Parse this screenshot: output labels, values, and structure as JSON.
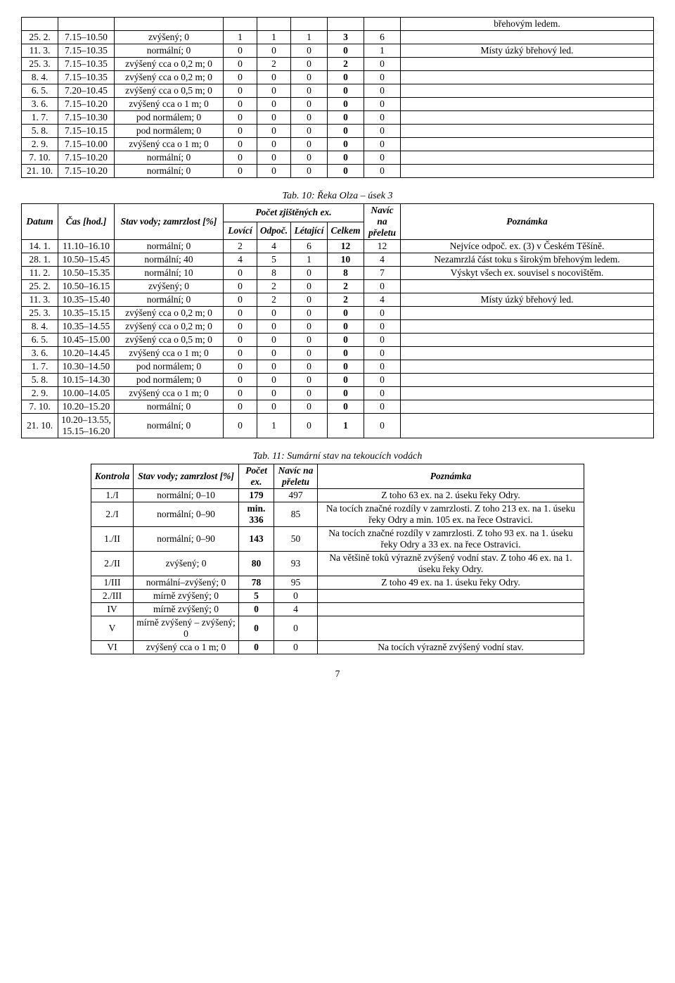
{
  "table1": {
    "rows": [
      {
        "d": "",
        "t": "",
        "s": "",
        "v": [
          "",
          "",
          "",
          "",
          ""
        ],
        "n": "břehovým ledem."
      },
      {
        "d": "25. 2.",
        "t": "7.15–10.50",
        "s": "zvýšený; 0",
        "v": [
          "1",
          "1",
          "1",
          "3",
          "6"
        ],
        "n": "",
        "bold4": true
      },
      {
        "d": "11. 3.",
        "t": "7.15–10.35",
        "s": "normální; 0",
        "v": [
          "0",
          "0",
          "0",
          "0",
          "1"
        ],
        "n": "Místy úzký břehový led.",
        "bold4": true
      },
      {
        "d": "25. 3.",
        "t": "7.15–10.35",
        "s": "zvýšený cca o 0,2 m; 0",
        "v": [
          "0",
          "2",
          "0",
          "2",
          "0"
        ],
        "n": "",
        "bold4": true
      },
      {
        "d": "8. 4.",
        "t": "7.15–10.35",
        "s": "zvýšený cca o 0,2 m; 0",
        "v": [
          "0",
          "0",
          "0",
          "0",
          "0"
        ],
        "n": "",
        "bold4": true
      },
      {
        "d": "6. 5.",
        "t": "7.20–10.45",
        "s": "zvýšený cca o 0,5 m; 0",
        "v": [
          "0",
          "0",
          "0",
          "0",
          "0"
        ],
        "n": "",
        "bold4": true
      },
      {
        "d": "3. 6.",
        "t": "7.15–10.20",
        "s": "zvýšený cca o 1 m; 0",
        "v": [
          "0",
          "0",
          "0",
          "0",
          "0"
        ],
        "n": "",
        "bold4": true
      },
      {
        "d": "1. 7.",
        "t": "7.15–10.30",
        "s": "pod normálem; 0",
        "v": [
          "0",
          "0",
          "0",
          "0",
          "0"
        ],
        "n": "",
        "bold4": true
      },
      {
        "d": "5. 8.",
        "t": "7.15–10.15",
        "s": "pod normálem; 0",
        "v": [
          "0",
          "0",
          "0",
          "0",
          "0"
        ],
        "n": "",
        "bold4": true
      },
      {
        "d": "2. 9.",
        "t": "7.15–10.00",
        "s": "zvýšený cca o 1 m; 0",
        "v": [
          "0",
          "0",
          "0",
          "0",
          "0"
        ],
        "n": "",
        "bold4": true
      },
      {
        "d": "7. 10.",
        "t": "7.15–10.20",
        "s": "normální; 0",
        "v": [
          "0",
          "0",
          "0",
          "0",
          "0"
        ],
        "n": "",
        "bold4": true
      },
      {
        "d": "21. 10.",
        "t": "7.15–10.20",
        "s": "normální; 0",
        "v": [
          "0",
          "0",
          "0",
          "0",
          "0"
        ],
        "n": "",
        "bold4": true
      }
    ]
  },
  "caption2": "Tab. 10: Řeka Olza – úsek 3",
  "table2": {
    "head": {
      "datum": "Datum",
      "cas": "Čas [hod.]",
      "stav": "Stav vody; zamrzlost [%]",
      "pocet": "Počet zjištěných ex.",
      "navic": "Navíc na přeletu",
      "pozn": "Poznámka",
      "lov": "Lovící",
      "odp": "Odpoč.",
      "let": "Létající",
      "cel": "Celkem"
    },
    "rows": [
      {
        "d": "14. 1.",
        "t": "11.10–16.10",
        "s": "normální; 0",
        "v": [
          "2",
          "4",
          "6",
          "12",
          "12"
        ],
        "n": "Nejvíce odpoč. ex. (3) v Českém Těšíně."
      },
      {
        "d": "28. 1.",
        "t": "10.50–15.45",
        "s": "normální; 40",
        "v": [
          "4",
          "5",
          "1",
          "10",
          "4"
        ],
        "n": "Nezamrzlá část toku s širokým břehovým ledem."
      },
      {
        "d": "11. 2.",
        "t": "10.50–15.35",
        "s": "normální; 10",
        "v": [
          "0",
          "8",
          "0",
          "8",
          "7"
        ],
        "n": "Výskyt všech ex. souvisel s nocovištěm."
      },
      {
        "d": "25. 2.",
        "t": "10.50–16.15",
        "s": "zvýšený; 0",
        "v": [
          "0",
          "2",
          "0",
          "2",
          "0"
        ],
        "n": ""
      },
      {
        "d": "11. 3.",
        "t": "10.35–15.40",
        "s": "normální; 0",
        "v": [
          "0",
          "2",
          "0",
          "2",
          "4"
        ],
        "n": "Místy úzký břehový led."
      },
      {
        "d": "25. 3.",
        "t": "10.35–15.15",
        "s": "zvýšený cca o 0,2 m; 0",
        "v": [
          "0",
          "0",
          "0",
          "0",
          "0"
        ],
        "n": ""
      },
      {
        "d": "8. 4.",
        "t": "10.35–14.55",
        "s": "zvýšený cca o 0,2 m; 0",
        "v": [
          "0",
          "0",
          "0",
          "0",
          "0"
        ],
        "n": ""
      },
      {
        "d": "6. 5.",
        "t": "10.45–15.00",
        "s": "zvýšený cca o 0,5 m; 0",
        "v": [
          "0",
          "0",
          "0",
          "0",
          "0"
        ],
        "n": ""
      },
      {
        "d": "3. 6.",
        "t": "10.20–14.45",
        "s": "zvýšený cca o 1 m; 0",
        "v": [
          "0",
          "0",
          "0",
          "0",
          "0"
        ],
        "n": ""
      },
      {
        "d": "1. 7.",
        "t": "10.30–14.50",
        "s": "pod normálem; 0",
        "v": [
          "0",
          "0",
          "0",
          "0",
          "0"
        ],
        "n": ""
      },
      {
        "d": "5. 8.",
        "t": "10.15–14.30",
        "s": "pod normálem; 0",
        "v": [
          "0",
          "0",
          "0",
          "0",
          "0"
        ],
        "n": ""
      },
      {
        "d": "2. 9.",
        "t": "10.00–14.05",
        "s": "zvýšený cca o 1 m; 0",
        "v": [
          "0",
          "0",
          "0",
          "0",
          "0"
        ],
        "n": ""
      },
      {
        "d": "7. 10.",
        "t": "10.20–15.20",
        "s": "normální; 0",
        "v": [
          "0",
          "0",
          "0",
          "0",
          "0"
        ],
        "n": ""
      },
      {
        "d": "21. 10.",
        "t": "10.20–13.55, 15.15–16.20",
        "s": "normální; 0",
        "v": [
          "0",
          "1",
          "0",
          "1",
          "0"
        ],
        "n": ""
      }
    ]
  },
  "caption3": "Tab. 11: Sumární stav na tekoucích vodách",
  "table3": {
    "head": {
      "k": "Kontrola",
      "s": "Stav vody; zamrzlost [%]",
      "p": "Počet ex.",
      "n": "Navíc na přeletu",
      "z": "Poznámka"
    },
    "rows": [
      {
        "k": "1./I",
        "s": "normální; 0–10",
        "p": "179",
        "n": "497",
        "z": "Z toho 63 ex. na 2. úseku řeky Odry.",
        "pb": true
      },
      {
        "k": "2./I",
        "s": "normální; 0–90",
        "p": "min. 336",
        "n": "85",
        "z": "Na tocích značné rozdíly v zamrzlosti. Z toho 213 ex. na 1. úseku řeky Odry a min. 105 ex. na řece Ostravici.",
        "pb": true
      },
      {
        "k": "1./II",
        "s": "normální; 0–90",
        "p": "143",
        "n": "50",
        "z": "Na tocích značné rozdíly v zamrzlosti. Z toho 93 ex. na 1. úseku řeky Odry a 33 ex. na řece Ostravici.",
        "pb": true
      },
      {
        "k": "2./II",
        "s": "zvýšený; 0",
        "p": "80",
        "n": "93",
        "z": "Na většině toků výrazně zvýšený vodní stav. Z toho 46 ex. na 1. úseku řeky Odry.",
        "pb": true
      },
      {
        "k": "1/III",
        "s": "normální–zvýšený; 0",
        "p": "78",
        "n": "95",
        "z": "Z toho 49 ex. na 1. úseku řeky Odry.",
        "pb": true
      },
      {
        "k": "2./III",
        "s": "mírně zvýšený; 0",
        "p": "5",
        "n": "0",
        "z": "",
        "pb": true
      },
      {
        "k": "IV",
        "s": "mírně zvýšený; 0",
        "p": "0",
        "n": "4",
        "z": "",
        "pb": true
      },
      {
        "k": "V",
        "s": "mírně zvýšený – zvýšený; 0",
        "p": "0",
        "n": "0",
        "z": "",
        "pb": true
      },
      {
        "k": "VI",
        "s": "zvýšený cca o 1 m; 0",
        "p": "0",
        "n": "0",
        "z": "Na tocích výrazně zvýšený vodní stav.",
        "pb": true
      }
    ]
  },
  "pagenum": "7"
}
